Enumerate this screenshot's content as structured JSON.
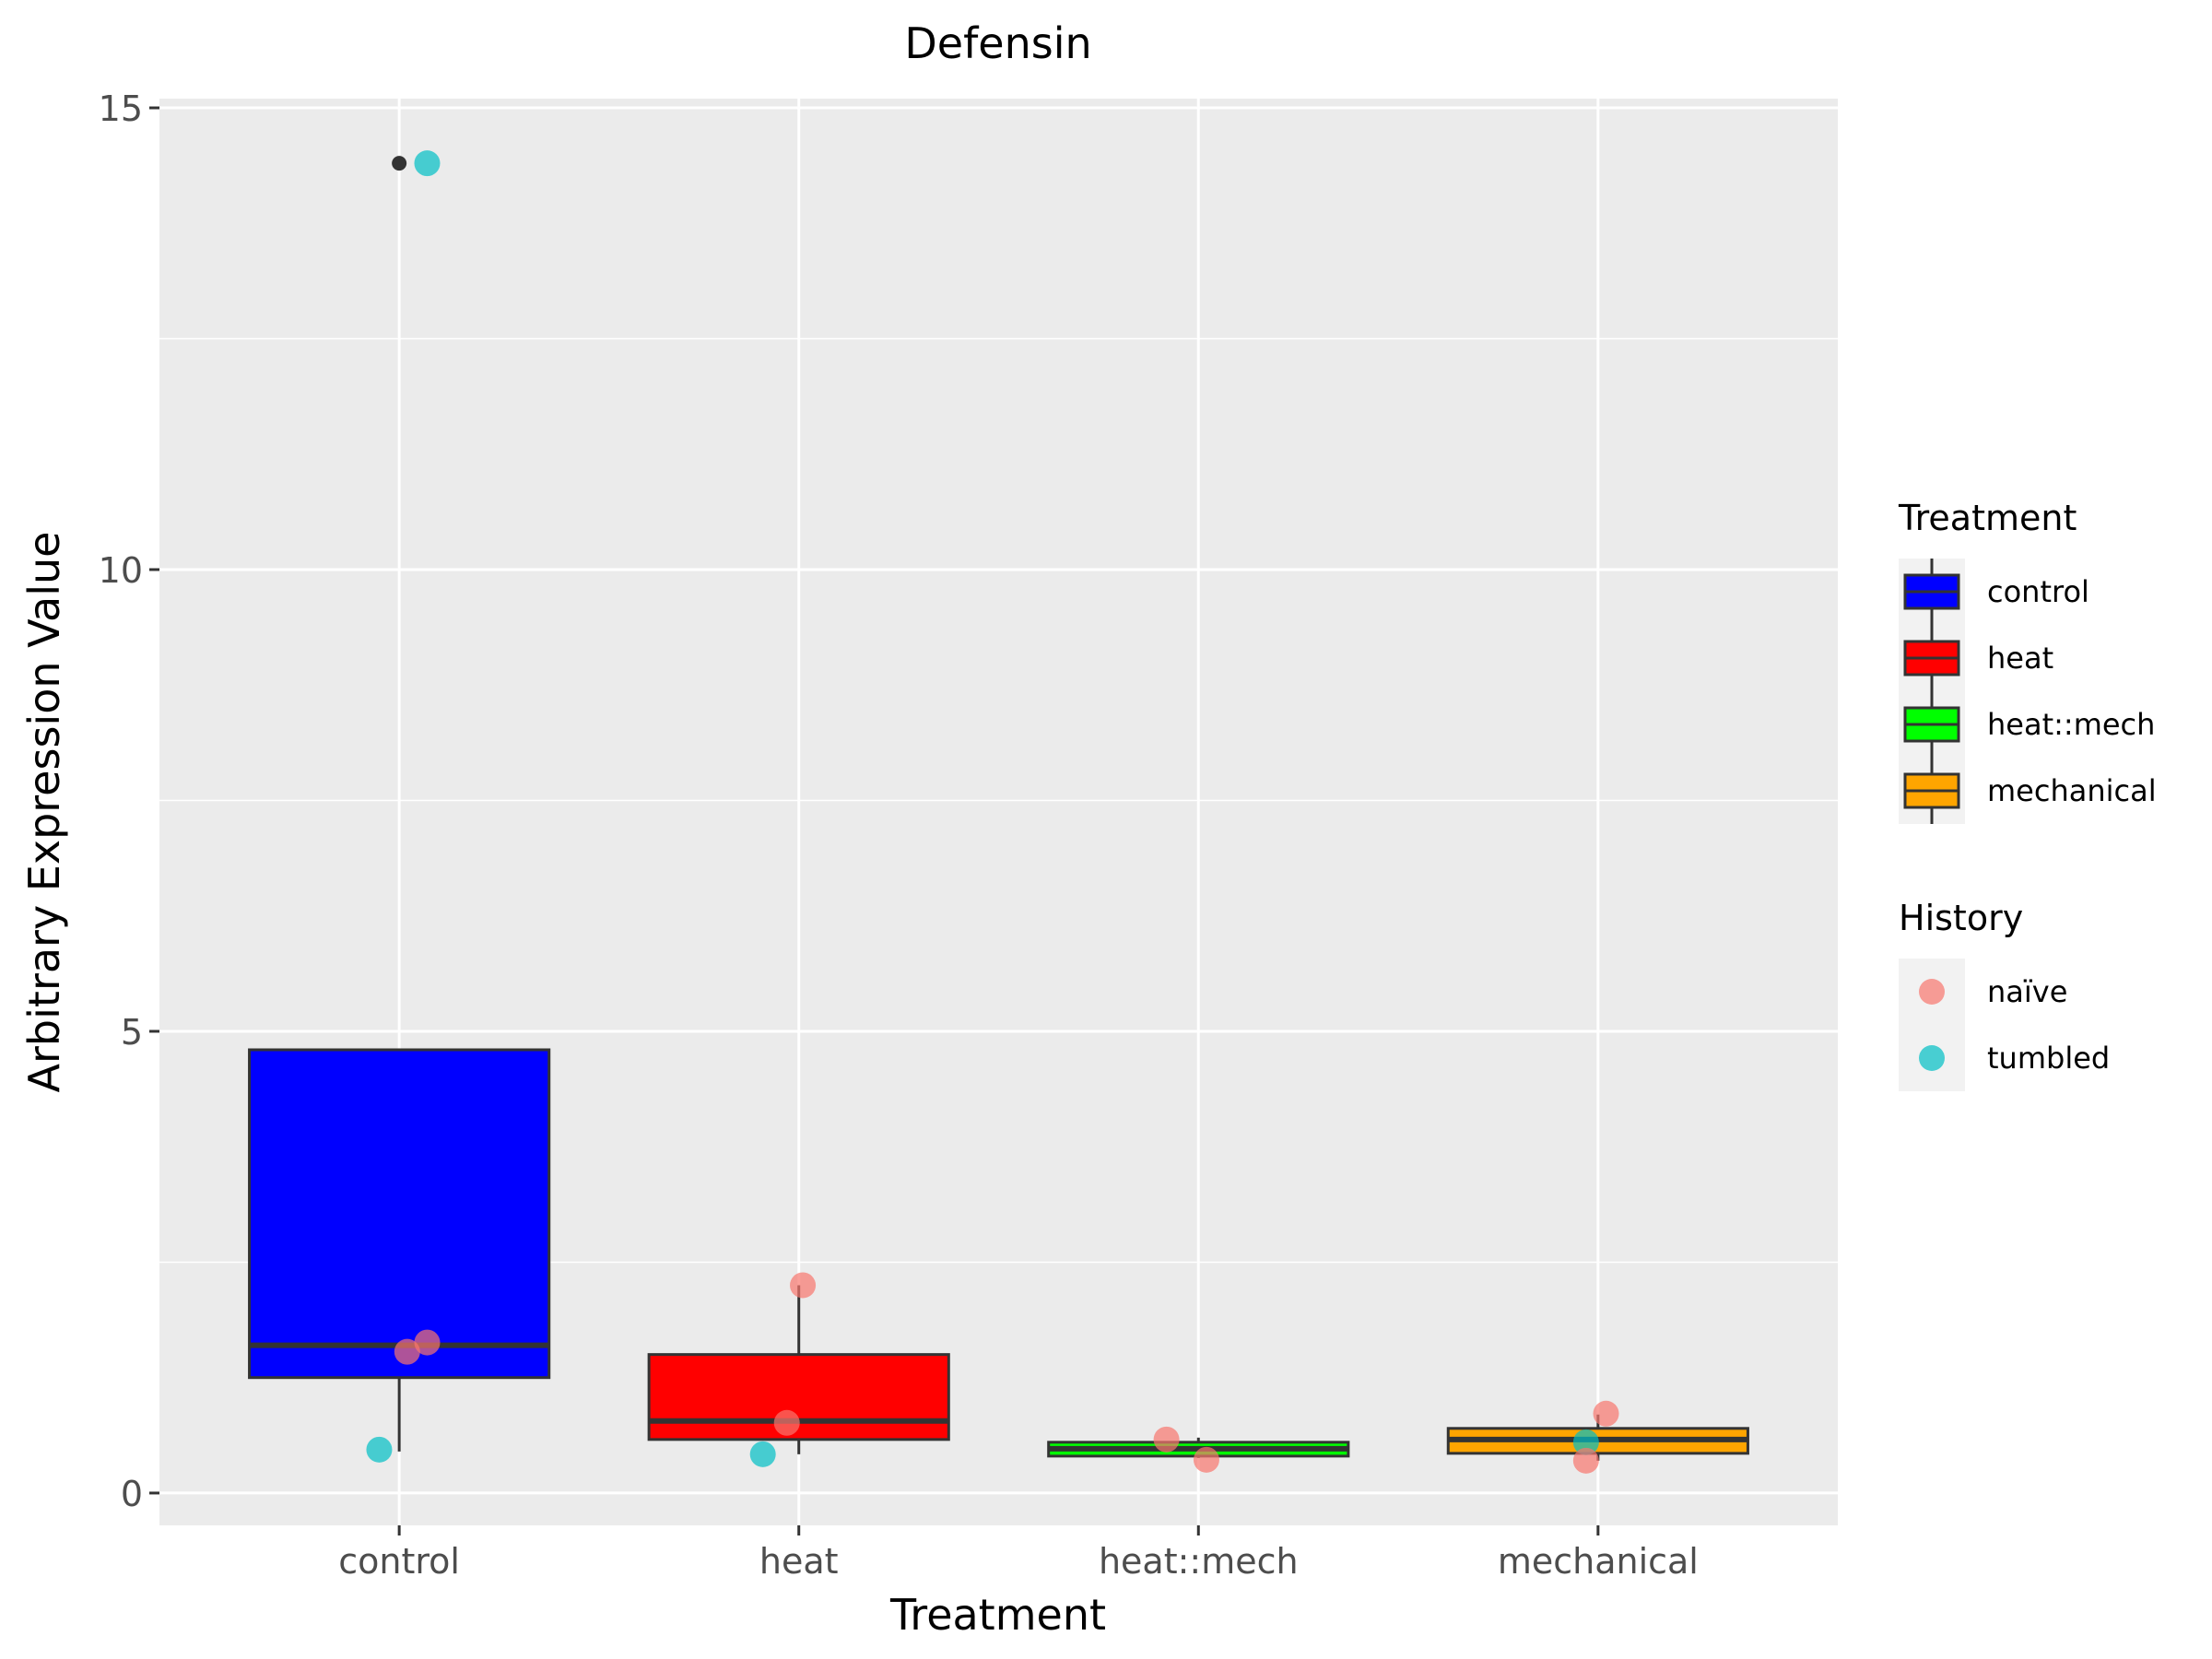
{
  "chart_data": {
    "type": "box",
    "title": "Defensin",
    "xlabel": "Treatment",
    "ylabel": "Arbitrary Expression Value",
    "ylim": [
      -0.35,
      15.1
    ],
    "yticks": [
      0,
      5,
      10,
      15
    ],
    "categories": [
      "control",
      "heat",
      "heat::mech",
      "mechanical"
    ],
    "grid": true,
    "legend_position": "right",
    "boxes": [
      {
        "category": "control",
        "q1": 1.25,
        "median": 1.6,
        "q3": 4.8,
        "whisker_low": 0.45,
        "whisker_high": 4.8,
        "outliers": [
          14.4
        ],
        "fill": "#0000ff"
      },
      {
        "category": "heat",
        "q1": 0.58,
        "median": 0.78,
        "q3": 1.5,
        "whisker_low": 0.42,
        "whisker_high": 2.25,
        "outliers": [],
        "fill": "#ff0000"
      },
      {
        "category": "heat::mech",
        "q1": 0.4,
        "median": 0.48,
        "q3": 0.55,
        "whisker_low": 0.38,
        "whisker_high": 0.6,
        "outliers": [],
        "fill": "#00ff00"
      },
      {
        "category": "mechanical",
        "q1": 0.43,
        "median": 0.58,
        "q3": 0.7,
        "whisker_low": 0.35,
        "whisker_high": 0.85,
        "outliers": [],
        "fill": "#ffa500"
      }
    ],
    "points": [
      {
        "category": "control",
        "y": 14.4,
        "history": "tumbled",
        "jitter": 0.07
      },
      {
        "category": "control",
        "y": 1.53,
        "history": "naïve",
        "jitter": 0.02
      },
      {
        "category": "control",
        "y": 1.63,
        "history": "naïve",
        "jitter": 0.07
      },
      {
        "category": "control",
        "y": 0.47,
        "history": "tumbled",
        "jitter": -0.05
      },
      {
        "category": "heat",
        "y": 2.25,
        "history": "naïve",
        "jitter": 0.01
      },
      {
        "category": "heat",
        "y": 0.76,
        "history": "naïve",
        "jitter": -0.03
      },
      {
        "category": "heat",
        "y": 0.42,
        "history": "tumbled",
        "jitter": -0.09
      },
      {
        "category": "heat::mech",
        "y": 0.58,
        "history": "naïve",
        "jitter": -0.08
      },
      {
        "category": "heat::mech",
        "y": 0.36,
        "history": "naïve",
        "jitter": 0.02
      },
      {
        "category": "mechanical",
        "y": 0.86,
        "history": "naïve",
        "jitter": 0.02
      },
      {
        "category": "mechanical",
        "y": 0.55,
        "history": "tumbled",
        "jitter": -0.03
      },
      {
        "category": "mechanical",
        "y": 0.35,
        "history": "naïve",
        "jitter": -0.03
      }
    ],
    "legends": [
      {
        "title": "Treatment",
        "type": "box",
        "entries": [
          {
            "label": "control",
            "color": "#0000ff"
          },
          {
            "label": "heat",
            "color": "#ff0000"
          },
          {
            "label": "heat::mech",
            "color": "#00ff00"
          },
          {
            "label": "mechanical",
            "color": "#ffa500"
          }
        ]
      },
      {
        "title": "History",
        "type": "point",
        "entries": [
          {
            "label": "naïve",
            "color": "#f8766d"
          },
          {
            "label": "tumbled",
            "color": "#00bfc4"
          }
        ]
      }
    ],
    "colors": {
      "panel_background": "#ebebeb",
      "grid": "#ffffff",
      "box_outline": "#333333",
      "outlier": "#333333"
    }
  }
}
